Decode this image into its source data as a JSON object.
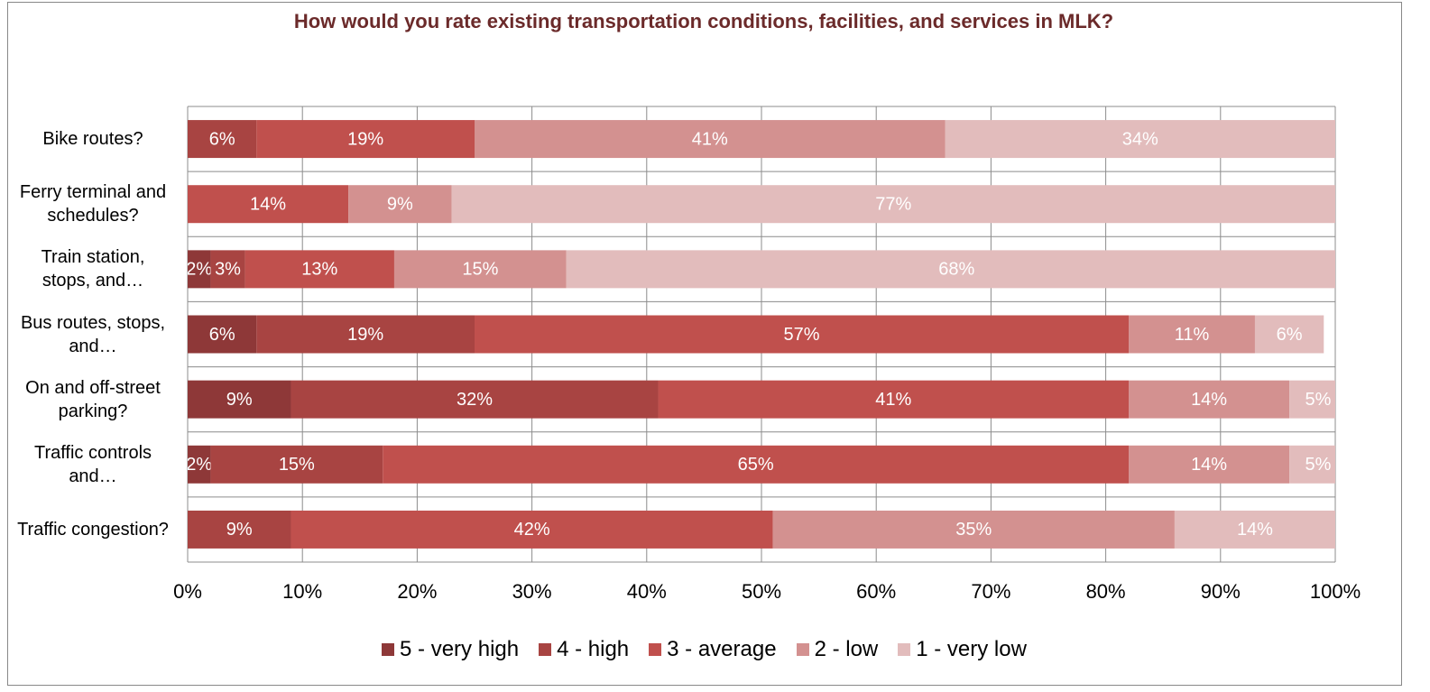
{
  "chart_data": {
    "type": "stacked-bar-horizontal",
    "title": "How would you rate existing transportation conditions, facilities, and services in MLK?",
    "categories": [
      "Bike routes?",
      "Ferry terminal and schedules?",
      "Train station, stops, and…",
      "Bus routes, stops, and…",
      "On and off-street parking?",
      "Traffic controls and…",
      "Traffic congestion?"
    ],
    "series": [
      {
        "name": "5 - very high",
        "color": "#8e3838",
        "values": [
          0,
          0,
          2,
          6,
          9,
          2,
          0
        ],
        "value_labels": [
          "0%",
          "0%",
          "2%",
          "6%",
          "9%",
          "2%",
          "0%"
        ]
      },
      {
        "name": "4 - high",
        "color": "#a84442",
        "values": [
          6,
          0,
          3,
          19,
          32,
          15,
          9
        ],
        "value_labels": [
          "6%",
          "0%",
          "3%",
          "19%",
          "32%",
          "15%",
          "9%"
        ]
      },
      {
        "name": "3 - average",
        "color": "#c0504d",
        "values": [
          19,
          14,
          13,
          57,
          41,
          65,
          42
        ],
        "value_labels": [
          "19%",
          "14%",
          "13%",
          "57%",
          "41%",
          "65%",
          "42%"
        ]
      },
      {
        "name": "2 - low",
        "color": "#d39190",
        "values": [
          41,
          9,
          15,
          11,
          14,
          14,
          35
        ],
        "value_labels": [
          "41%",
          "9%",
          "15%",
          "11%",
          "14%",
          "14%",
          "35%"
        ]
      },
      {
        "name": "1 - very low",
        "color": "#e2bcbc",
        "values": [
          34,
          77,
          68,
          6,
          5,
          5,
          14
        ],
        "value_labels": [
          "34%",
          "77%",
          "68%",
          "6%",
          "5%",
          "5%",
          "14%"
        ]
      }
    ],
    "xlim": [
      0,
      100
    ],
    "xticks": [
      {
        "value": 0,
        "label": "0%"
      },
      {
        "value": 10,
        "label": "10%"
      },
      {
        "value": 20,
        "label": "20%"
      },
      {
        "value": 30,
        "label": "30%"
      },
      {
        "value": 40,
        "label": "40%"
      },
      {
        "value": 50,
        "label": "50%"
      },
      {
        "value": 60,
        "label": "60%"
      },
      {
        "value": 70,
        "label": "70%"
      },
      {
        "value": 80,
        "label": "80%"
      },
      {
        "value": 90,
        "label": "90%"
      },
      {
        "value": 100,
        "label": "100%"
      }
    ],
    "grid": true,
    "legend": "bottom"
  }
}
